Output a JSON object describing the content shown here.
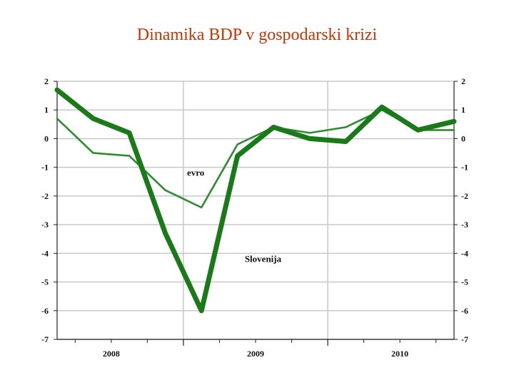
{
  "slide": {
    "title": "Dinamika BDP v gospodarski krizi"
  },
  "chart_data": {
    "type": "line",
    "title": "Dinamika BDP v gospodarski krizi",
    "x": [
      "2008Q1",
      "2008Q2",
      "2008Q3",
      "2008Q4",
      "2009Q1",
      "2009Q2",
      "2009Q3",
      "2009Q4",
      "2010Q1",
      "2010Q2",
      "2010Q3",
      "2010Q4"
    ],
    "x_tick_labels": [
      "2008",
      "2009",
      "2010"
    ],
    "ylim": [
      -7,
      2
    ],
    "y_ticks_left": [
      "2",
      "1",
      "0",
      "-1",
      "-2",
      "-3",
      "-4",
      "-5",
      "-6",
      "-7"
    ],
    "y_ticks_right": [
      "2",
      "1",
      "0",
      "-1",
      "-2",
      "-3",
      "-4",
      "-5",
      "-6",
      "-7"
    ],
    "grid": true,
    "series": [
      {
        "name": "evro",
        "color": "#2e8b2e",
        "values": [
          0.7,
          -0.5,
          -0.6,
          -1.8,
          -2.4,
          -0.2,
          0.4,
          0.2,
          0.4,
          1.0,
          0.3,
          0.3
        ]
      },
      {
        "name": "Slovenija",
        "color": "#1a7a1a",
        "values": [
          1.7,
          0.7,
          0.2,
          -3.3,
          -6.0,
          -0.6,
          0.4,
          0.0,
          -0.1,
          1.1,
          0.3,
          0.6
        ]
      }
    ],
    "annotations": [
      {
        "text": "evro",
        "series": "evro"
      },
      {
        "text": "Slovenija",
        "series": "Slovenija"
      }
    ]
  }
}
